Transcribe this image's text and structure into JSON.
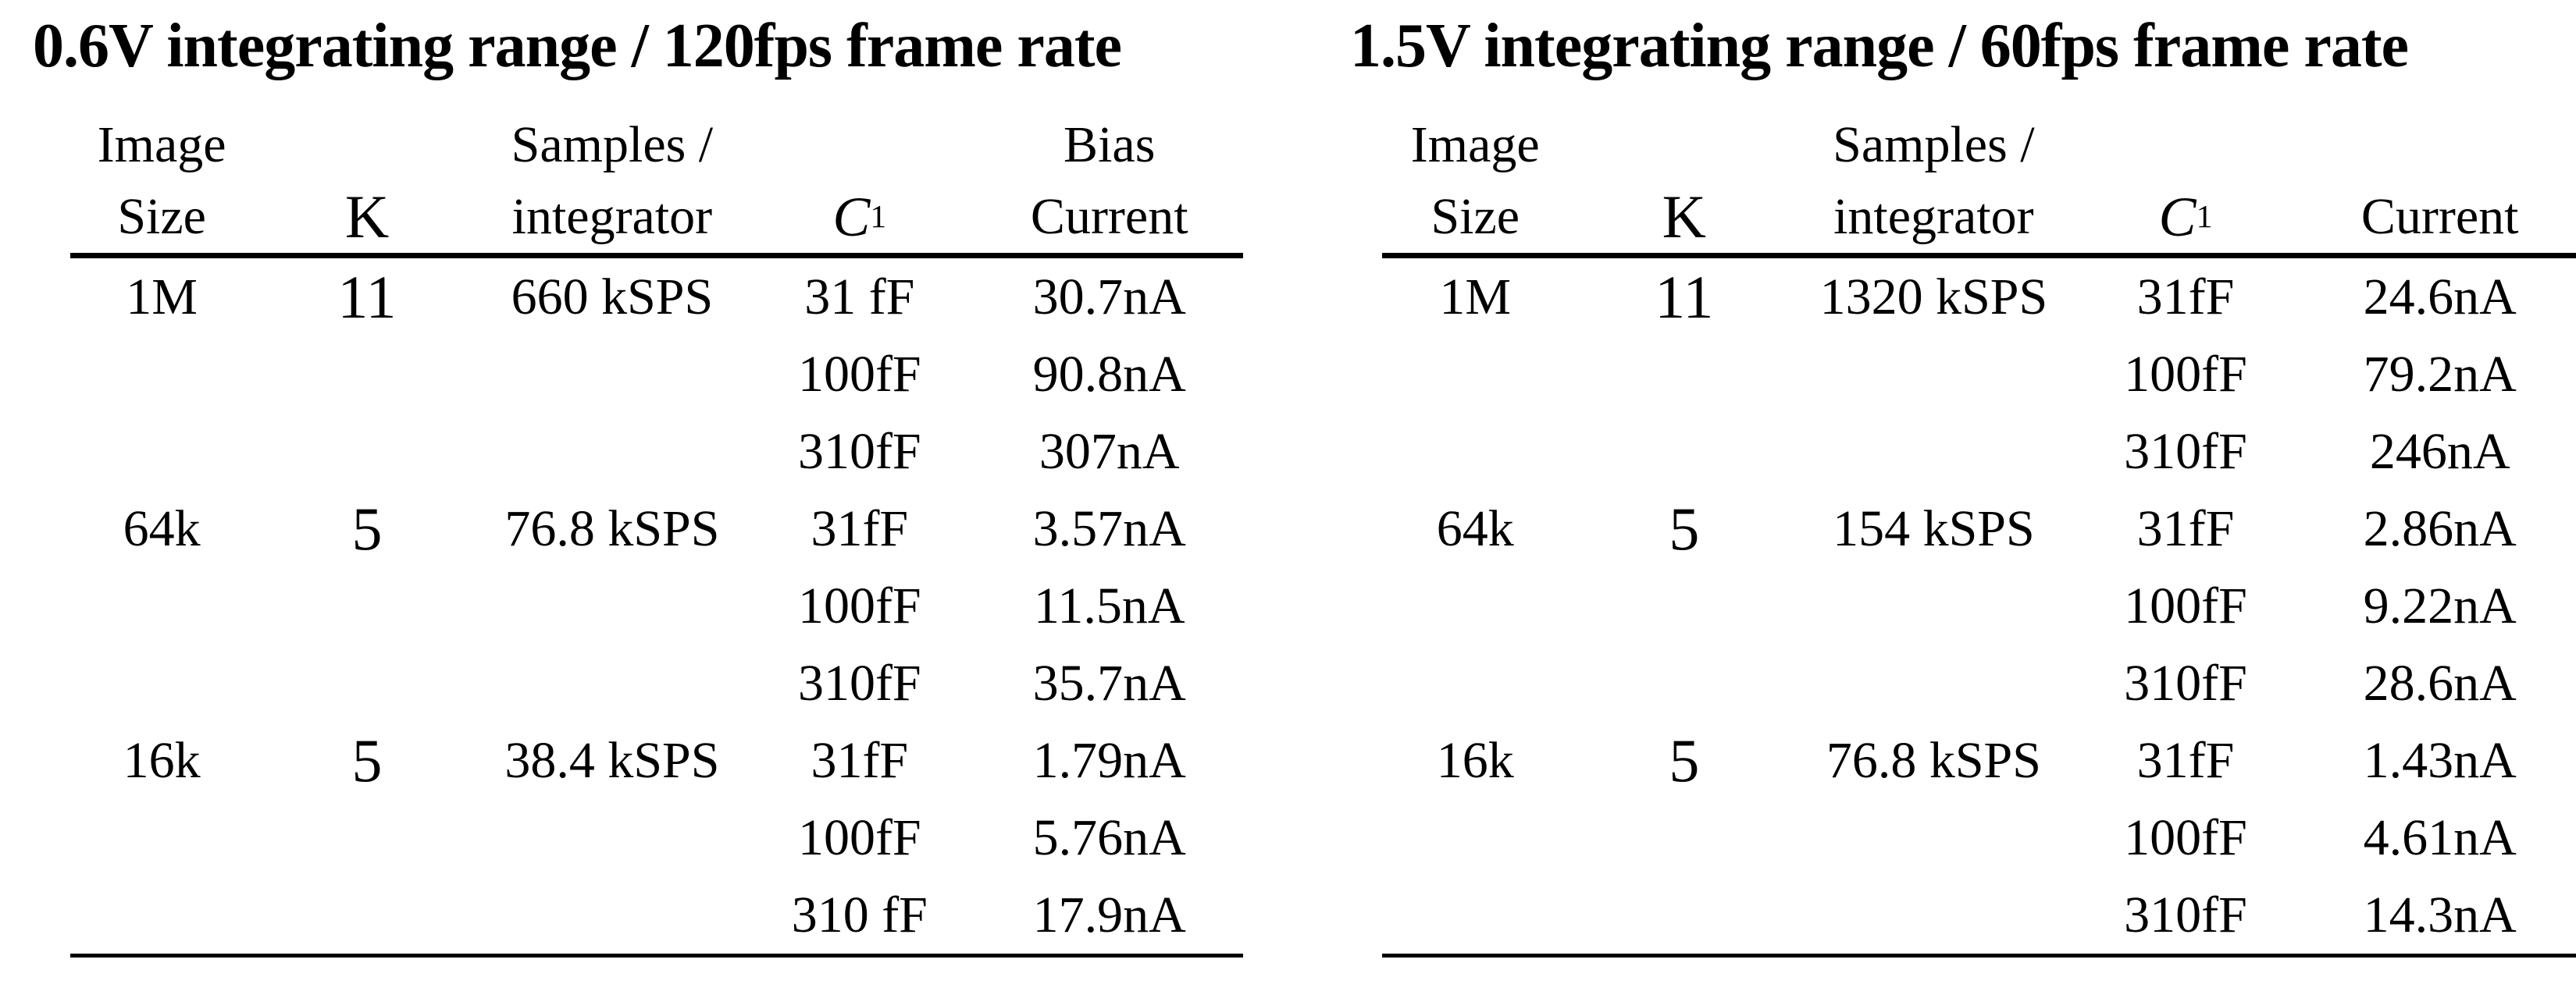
{
  "colors": {
    "background": "#ffffff",
    "text": "#000000",
    "rule": "#000000"
  },
  "tables": [
    {
      "title": "0.6V integrating range / 120fps frame rate",
      "header_top": [
        "Image",
        "",
        "Samples /",
        "",
        "Bias"
      ],
      "header_bottom": [
        "Size",
        "K",
        "integrator",
        "",
        "Current"
      ],
      "header_c1": {
        "base": "C",
        "sub": "1"
      },
      "rows": [
        [
          "1M",
          "11",
          "660 kSPS",
          "31 fF",
          "30.7nA"
        ],
        [
          "",
          "",
          "",
          "100fF",
          "90.8nA"
        ],
        [
          "",
          "",
          "",
          "310fF",
          "307nA"
        ],
        [
          "64k",
          "5",
          "76.8 kSPS",
          "31fF",
          "3.57nA"
        ],
        [
          "",
          "",
          "",
          "100fF",
          "11.5nA"
        ],
        [
          "",
          "",
          "",
          "310fF",
          "35.7nA"
        ],
        [
          "16k",
          "5",
          "38.4 kSPS",
          "31fF",
          "1.79nA"
        ],
        [
          "",
          "",
          "",
          "100fF",
          "5.76nA"
        ],
        [
          "",
          "",
          "",
          "310 fF",
          "17.9nA"
        ]
      ]
    },
    {
      "title": "1.5V integrating range / 60fps frame rate",
      "header_top": [
        "Image",
        "",
        "Samples /",
        "",
        ""
      ],
      "header_bottom": [
        "Size",
        "K",
        "integrator",
        "",
        "Current"
      ],
      "header_c1": {
        "base": "C",
        "sub": "1"
      },
      "rows": [
        [
          "1M",
          "11",
          "1320 kSPS",
          "31fF",
          "24.6nA"
        ],
        [
          "",
          "",
          "",
          "100fF",
          "79.2nA"
        ],
        [
          "",
          "",
          "",
          "310fF",
          "246nA"
        ],
        [
          "64k",
          "5",
          "154 kSPS",
          "31fF",
          "2.86nA"
        ],
        [
          "",
          "",
          "",
          "100fF",
          "9.22nA"
        ],
        [
          "",
          "",
          "",
          "310fF",
          "28.6nA"
        ],
        [
          "16k",
          "5",
          "76.8 kSPS",
          "31fF",
          "1.43nA"
        ],
        [
          "",
          "",
          "",
          "100fF",
          "4.61nA"
        ],
        [
          "",
          "",
          "",
          "310fF",
          "14.3nA"
        ]
      ]
    }
  ]
}
